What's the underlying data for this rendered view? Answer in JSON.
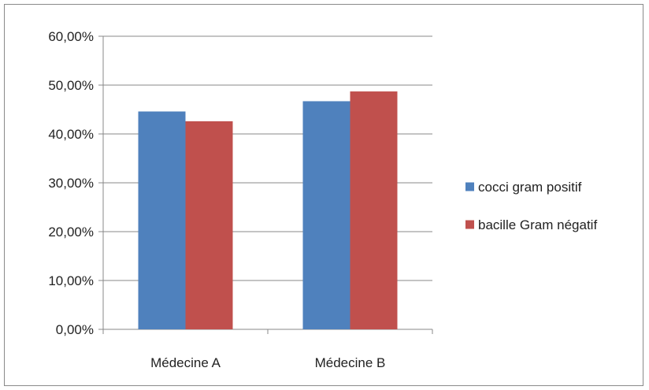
{
  "chart_data": {
    "type": "bar",
    "title": "",
    "xlabel": "",
    "ylabel": "",
    "categories": [
      "Médecine A",
      "Médecine B"
    ],
    "series": [
      {
        "name": "cocci gram positif",
        "values": [
          44.6,
          46.7
        ],
        "color": "#4f81bd"
      },
      {
        "name": "bacille Gram négatif",
        "values": [
          42.6,
          48.7
        ],
        "color": "#c0504d"
      }
    ],
    "ylim": [
      0,
      60
    ],
    "yticks": [
      0,
      10,
      20,
      30,
      40,
      50,
      60
    ],
    "ytick_labels": [
      "0,00%",
      "10,00%",
      "20,00%",
      "30,00%",
      "40,00%",
      "50,00%",
      "60,00%"
    ],
    "grid": true,
    "legend_position": "right"
  }
}
